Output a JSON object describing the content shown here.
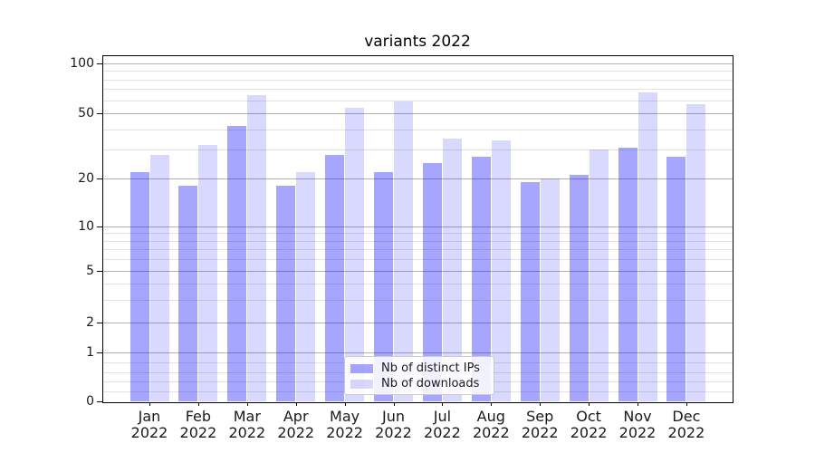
{
  "chart_data": {
    "type": "bar",
    "title": "variants 2022",
    "categories": [
      "Jan 2022",
      "Feb 2022",
      "Mar 2022",
      "Apr 2022",
      "May 2022",
      "Jun 2022",
      "Jul 2022",
      "Aug 2022",
      "Sep 2022",
      "Oct 2022",
      "Nov 2022",
      "Dec 2022"
    ],
    "series": [
      {
        "name": "Nb of distinct IPs",
        "color": "rgba(0,0,255,0.35)",
        "values": [
          22,
          18,
          42,
          18,
          28,
          22,
          25,
          27,
          19,
          21,
          31,
          27
        ]
      },
      {
        "name": "Nb of downloads",
        "color": "rgba(0,0,255,0.15)",
        "values": [
          28,
          32,
          64,
          22,
          54,
          59,
          35,
          34,
          20,
          30,
          67,
          57
        ]
      }
    ],
    "xlabel": "",
    "ylabel": "",
    "yscale": "symlog",
    "yticks": [
      0,
      1,
      2,
      5,
      10,
      20,
      50,
      100
    ],
    "yminorticks": [
      0.2,
      0.4,
      0.6,
      0.8,
      3,
      4,
      6,
      7,
      8,
      9,
      30,
      40,
      60,
      70,
      80,
      90
    ],
    "ylim": [
      0,
      112
    ],
    "grid": true,
    "legend_position": "lower center",
    "colors": {
      "bar_distinct_ips": "rgba(0,0,255,0.35)",
      "bar_downloads": "rgba(0,0,255,0.15)",
      "major_grid": "#b3b3b3",
      "minor_grid": "#e2e2e2",
      "spine": "#000000"
    }
  }
}
